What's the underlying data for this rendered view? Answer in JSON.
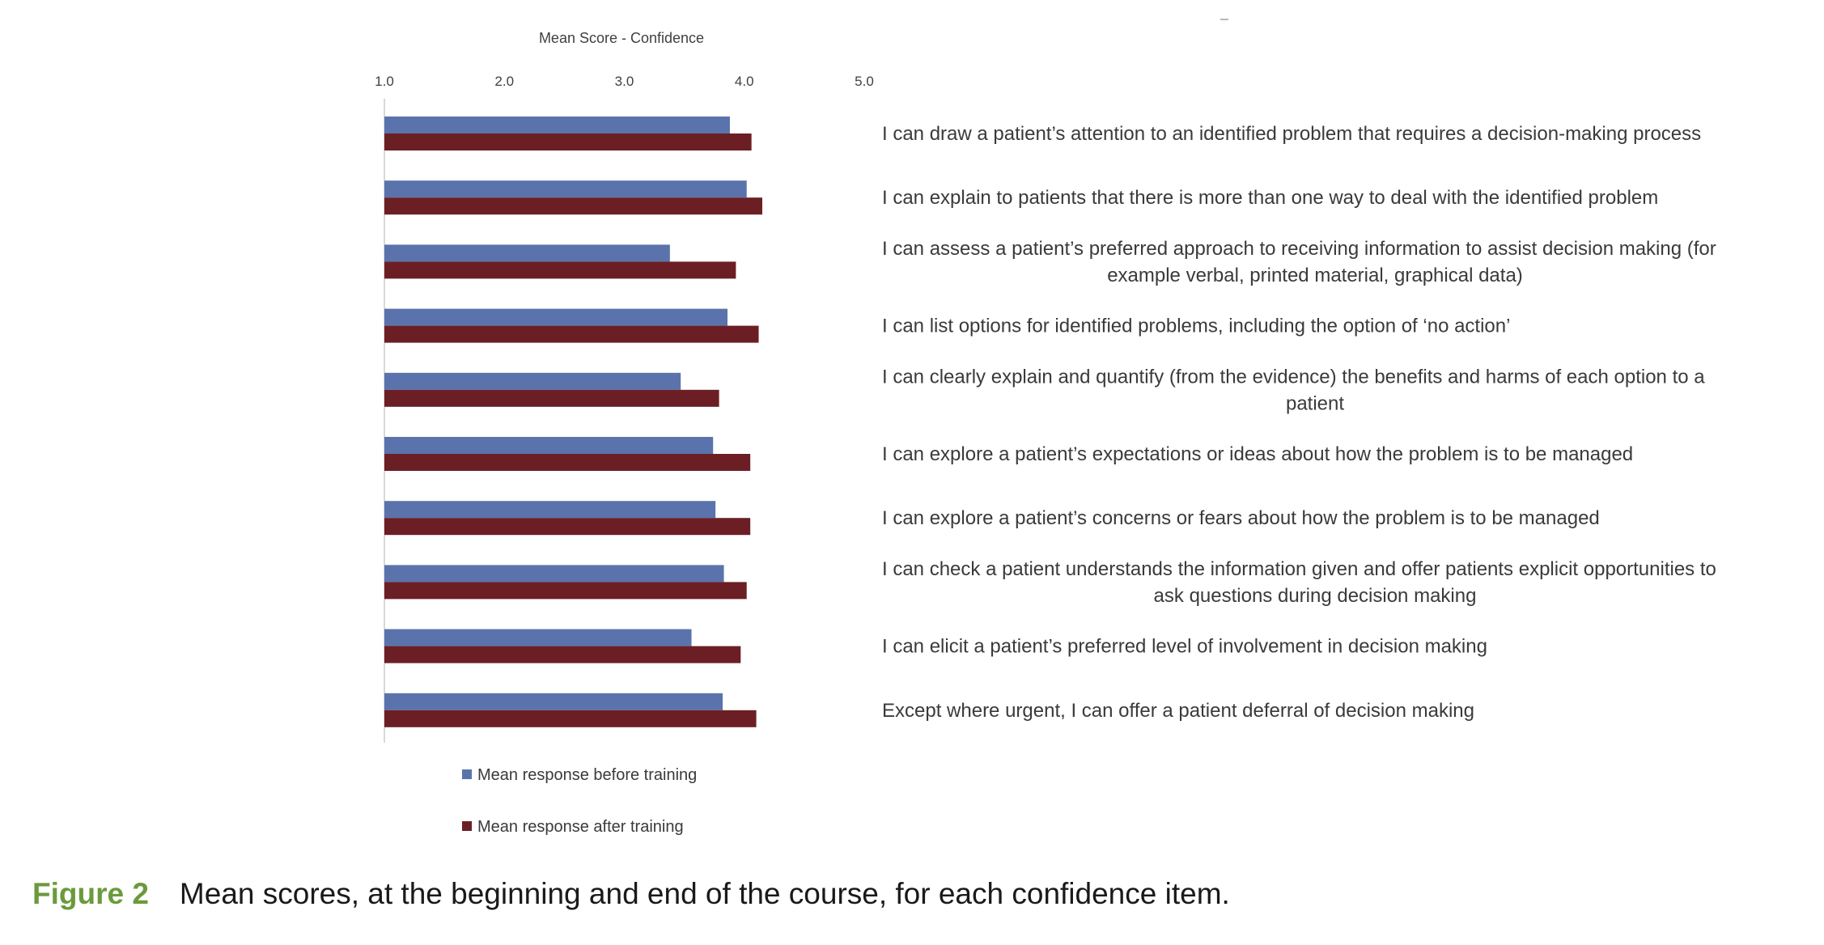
{
  "chart_data": {
    "type": "bar",
    "orientation": "horizontal",
    "title": "Mean Score - Confidence",
    "xlim": [
      1.0,
      5.0
    ],
    "x_ticks": [
      "1.0",
      "2.0",
      "3.0",
      "4.0",
      "5.0"
    ],
    "tick_position": "top",
    "grid": false,
    "legend_position": "bottom-left",
    "categories": [
      [
        "I can draw a patient’s attention to an identified problem that requires a decision-making process"
      ],
      [
        "I can explain to patients that there is more than one way to deal with the identified problem"
      ],
      [
        "I can assess a patient’s preferred approach to receiving information to assist decision making (for",
        "example verbal, printed material, graphical data)"
      ],
      [
        "I can list options for identified problems, including the option of ‘no action’"
      ],
      [
        "I can clearly explain and quantify (from the evidence) the benefits and harms of each option to a",
        "patient"
      ],
      [
        "I can explore a patient’s expectations or ideas about how the problem is to be managed"
      ],
      [
        "I can explore a patient’s concerns or fears about how the problem is to be managed"
      ],
      [
        "I can check a patient understands the information given and offer patients explicit opportunities to",
        "ask questions during decision making"
      ],
      [
        "I can elicit a patient’s preferred level of involvement in decision making"
      ],
      [
        "Except where urgent, I can offer a patient deferral of decision making"
      ]
    ],
    "series": [
      {
        "name": "Mean response before training",
        "color": "#5b73ac",
        "values": [
          3.88,
          4.02,
          3.38,
          3.86,
          3.47,
          3.74,
          3.76,
          3.83,
          3.56,
          3.82
        ]
      },
      {
        "name": "Mean response after training",
        "color": "#6b1f24",
        "values": [
          4.06,
          4.15,
          3.93,
          4.12,
          3.79,
          4.05,
          4.05,
          4.02,
          3.97,
          4.1
        ]
      }
    ]
  },
  "caption": {
    "label": "Figure 2",
    "text": "Mean scores, at the beginning and end of the course, for each confidence item."
  }
}
